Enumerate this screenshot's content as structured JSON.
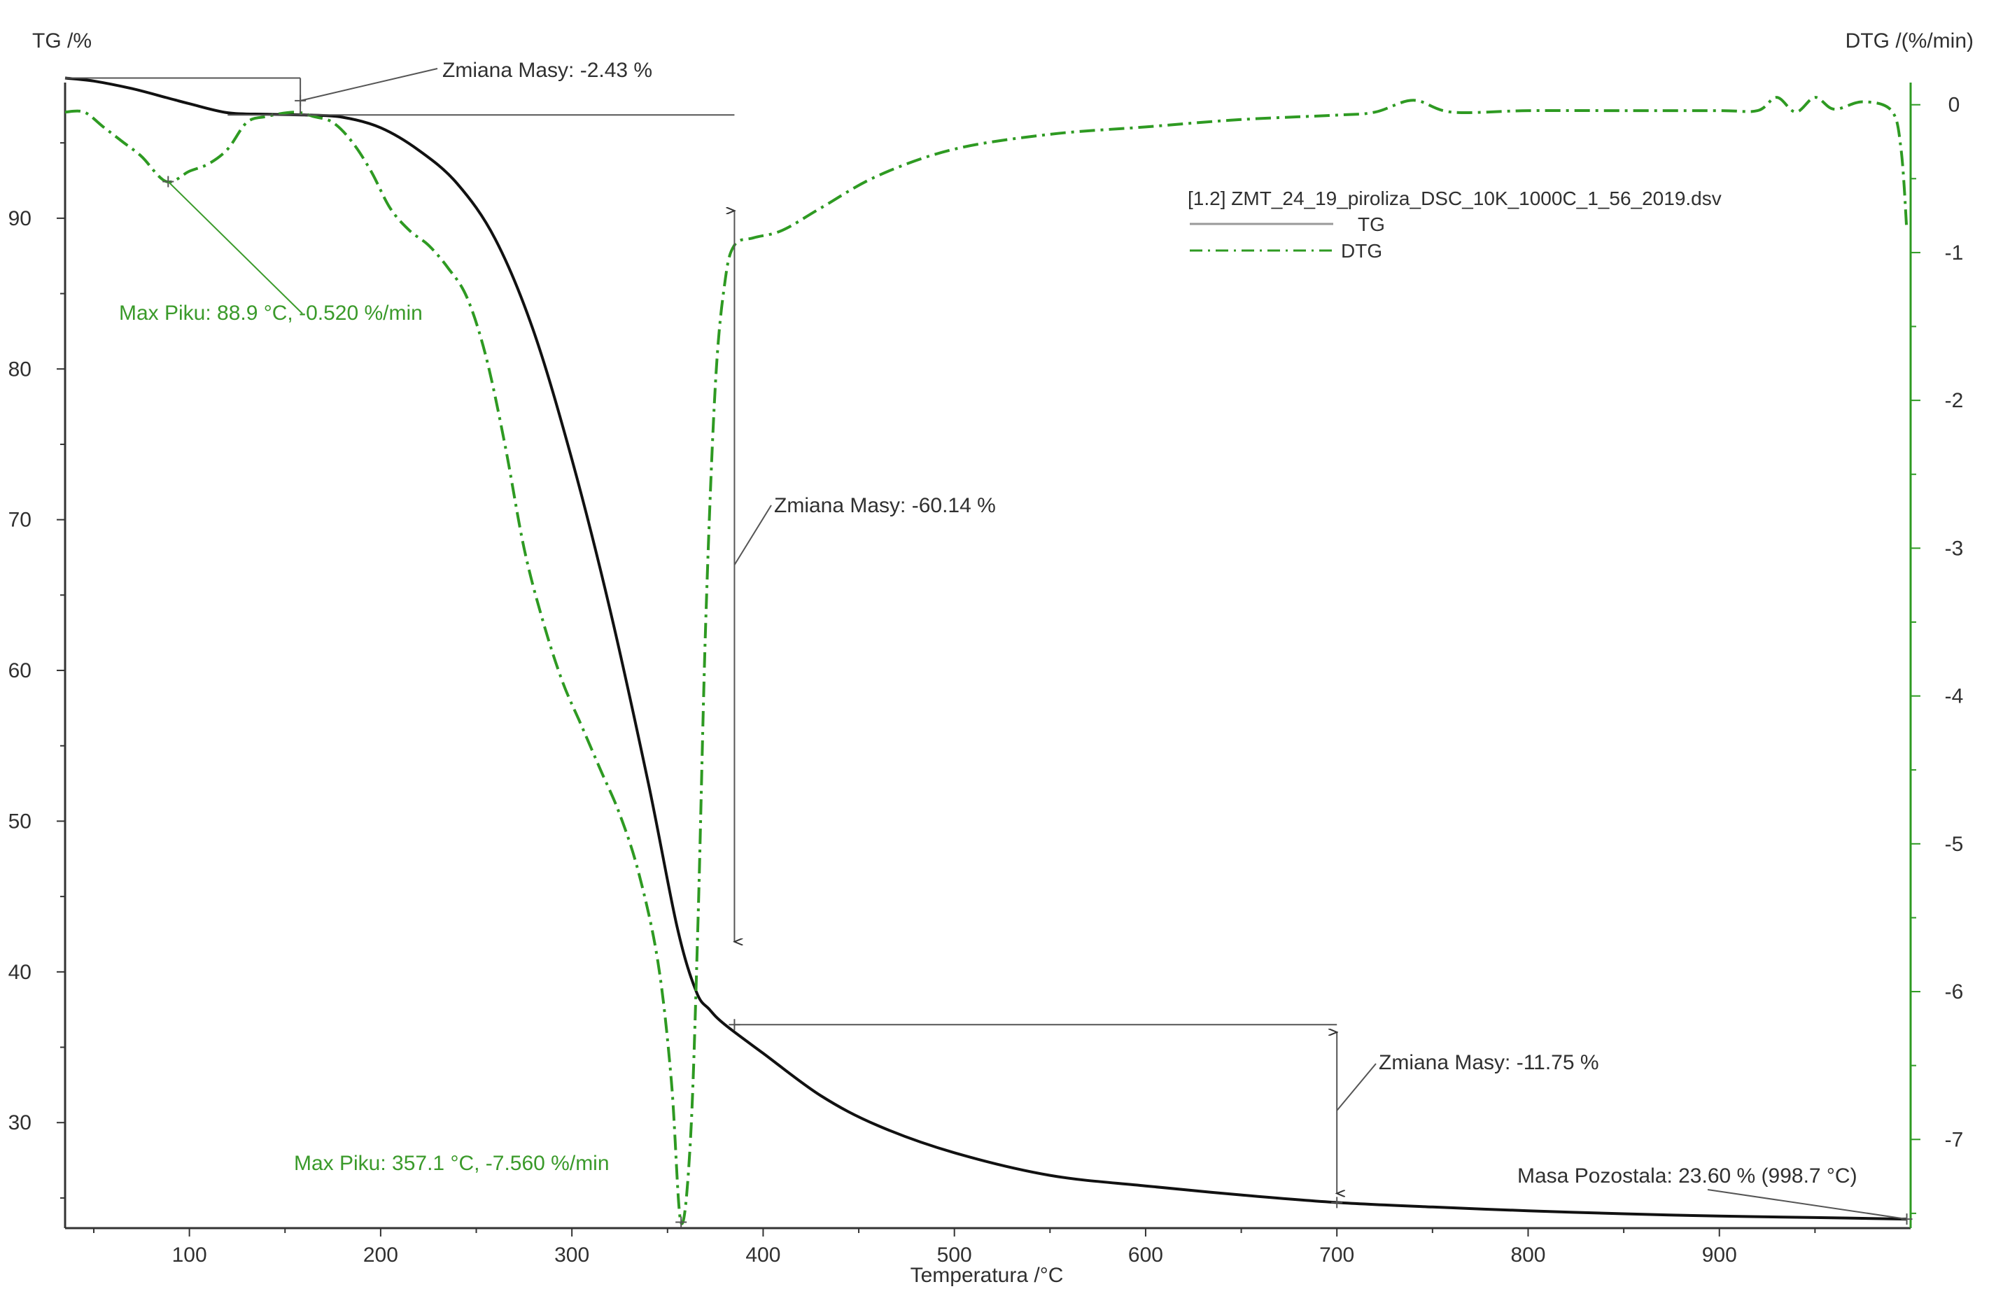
{
  "colors": {
    "tg": "#111111",
    "dtg": "#2e9a22",
    "axis": "#333333",
    "annotation": "#555555",
    "annotation_green": "#3a9a2a"
  },
  "chart_data": {
    "type": "line",
    "xlabel": "Temperatura /°C",
    "ylabel_left": "TG /%",
    "ylabel_right": "DTG /(%/min)",
    "xlim": [
      35,
      1000
    ],
    "ylim_left": [
      23,
      99
    ],
    "ylim_right": [
      -7.6,
      0.15
    ],
    "x_ticks": [
      100,
      200,
      300,
      400,
      500,
      600,
      700,
      800,
      900
    ],
    "y_ticks_left": [
      30,
      40,
      50,
      60,
      70,
      80,
      90
    ],
    "y_ticks_right": [
      0,
      -1,
      -2,
      -3,
      -4,
      -5,
      -6,
      -7
    ],
    "grid": false,
    "legend": {
      "placement": "top-right",
      "file": "[1.2] ZMT_24_19_piroliza_DSC_10K_1000C_1_56_2019.dsv",
      "entries": [
        "TG",
        "DTG"
      ]
    },
    "series": [
      {
        "name": "TG",
        "axis": "left",
        "style": "solid",
        "x": [
          35,
          50,
          70,
          88,
          100,
          120,
          140,
          160,
          180,
          200,
          220,
          240,
          260,
          280,
          300,
          320,
          340,
          355,
          365,
          372,
          380,
          400,
          430,
          460,
          500,
          550,
          600,
          650,
          700,
          750,
          800,
          850,
          900,
          950,
          998
        ],
        "y": [
          99.3,
          99.1,
          98.6,
          98.0,
          97.6,
          97.0,
          96.9,
          96.85,
          96.7,
          96.0,
          94.5,
          92.3,
          88.6,
          82.5,
          74.0,
          64.0,
          52.5,
          43.0,
          38.7,
          37.5,
          36.5,
          34.6,
          31.8,
          29.8,
          28.0,
          26.5,
          25.8,
          25.2,
          24.7,
          24.4,
          24.15,
          23.95,
          23.8,
          23.7,
          23.6
        ]
      },
      {
        "name": "DTG",
        "axis": "right",
        "style": "dash-dot",
        "x": [
          35,
          45,
          55,
          65,
          75,
          88,
          100,
          110,
          120,
          130,
          140,
          155,
          165,
          175,
          185,
          195,
          205,
          215,
          225,
          235,
          245,
          255,
          265,
          275,
          285,
          295,
          305,
          315,
          325,
          335,
          345,
          352,
          357,
          362,
          366,
          370,
          375,
          380,
          385,
          395,
          410,
          430,
          460,
          500,
          550,
          600,
          650,
          700,
          720,
          740,
          760,
          800,
          850,
          900,
          920,
          930,
          940,
          950,
          960,
          975,
          990,
          995,
          998
        ],
        "y": [
          -0.05,
          -0.05,
          -0.15,
          -0.25,
          -0.35,
          -0.52,
          -0.45,
          -0.4,
          -0.3,
          -0.12,
          -0.08,
          -0.05,
          -0.08,
          -0.12,
          -0.25,
          -0.45,
          -0.7,
          -0.85,
          -0.95,
          -1.1,
          -1.3,
          -1.7,
          -2.3,
          -3.0,
          -3.5,
          -3.9,
          -4.2,
          -4.5,
          -4.8,
          -5.2,
          -5.8,
          -6.6,
          -7.56,
          -7.0,
          -5.5,
          -3.5,
          -1.9,
          -1.2,
          -0.95,
          -0.9,
          -0.85,
          -0.7,
          -0.48,
          -0.3,
          -0.2,
          -0.15,
          -0.1,
          -0.07,
          -0.05,
          0.03,
          -0.05,
          -0.04,
          -0.04,
          -0.04,
          -0.04,
          0.05,
          -0.05,
          0.05,
          -0.03,
          0.02,
          -0.04,
          -0.3,
          -0.85
        ]
      }
    ],
    "annotations": [
      {
        "text": "Zmiana Masy: -2.43 %",
        "color": "black"
      },
      {
        "text": "Max Piku: 88.9 °C, -0.520 %/min",
        "color": "green"
      },
      {
        "text": "Zmiana Masy: -60.14 %",
        "color": "black"
      },
      {
        "text": "Max Piku: 357.1 °C, -7.560 %/min",
        "color": "green"
      },
      {
        "text": "Zmiana Masy: -11.75 %",
        "color": "black"
      },
      {
        "text": "Masa Pozostala: 23.60 % (998.7 °C)",
        "color": "black"
      }
    ]
  }
}
